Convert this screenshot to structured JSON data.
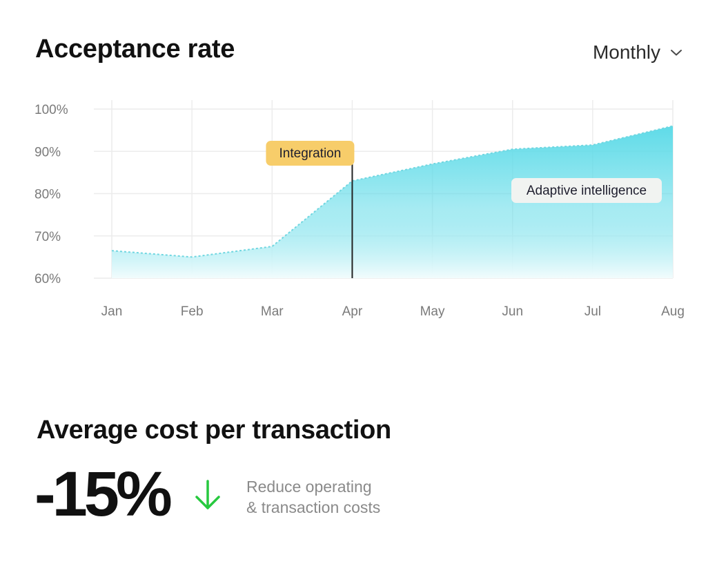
{
  "acceptance": {
    "title": "Acceptance rate",
    "period_selector": {
      "label": "Monthly",
      "icon": "chevron-down-icon"
    }
  },
  "chart_data": {
    "type": "area",
    "title": "Acceptance rate",
    "x": [
      "Jan",
      "Feb",
      "Mar",
      "Apr",
      "May",
      "Jun",
      "Jul",
      "Aug"
    ],
    "series": [
      {
        "values": [
          66.5,
          65,
          67.5,
          83,
          87,
          90.5,
          91.5,
          96
        ]
      }
    ],
    "y_ticks": [
      "100%",
      "90%",
      "80%",
      "70%",
      "60%"
    ],
    "ylim": [
      60,
      100
    ],
    "grid": true,
    "area_color_top": "#5fdbe8",
    "area_color_bottom": "#f2fcfd",
    "line_color": "#6fd6e0",
    "annotations": [
      {
        "label": "Integration",
        "x": "Apr",
        "style": "badge",
        "color": "#f7cd6a",
        "has_marker_line": true
      },
      {
        "label": "Adaptive intelligence",
        "x": "Jul",
        "style": "badge",
        "color": "#f1f3f1"
      }
    ]
  },
  "cost": {
    "title": "Average cost per transaction",
    "value": "-15%",
    "trend_icon": "arrow-down-icon",
    "trend_color": "#27c93f",
    "description_line1": "Reduce operating",
    "description_line2": "& transaction costs"
  }
}
